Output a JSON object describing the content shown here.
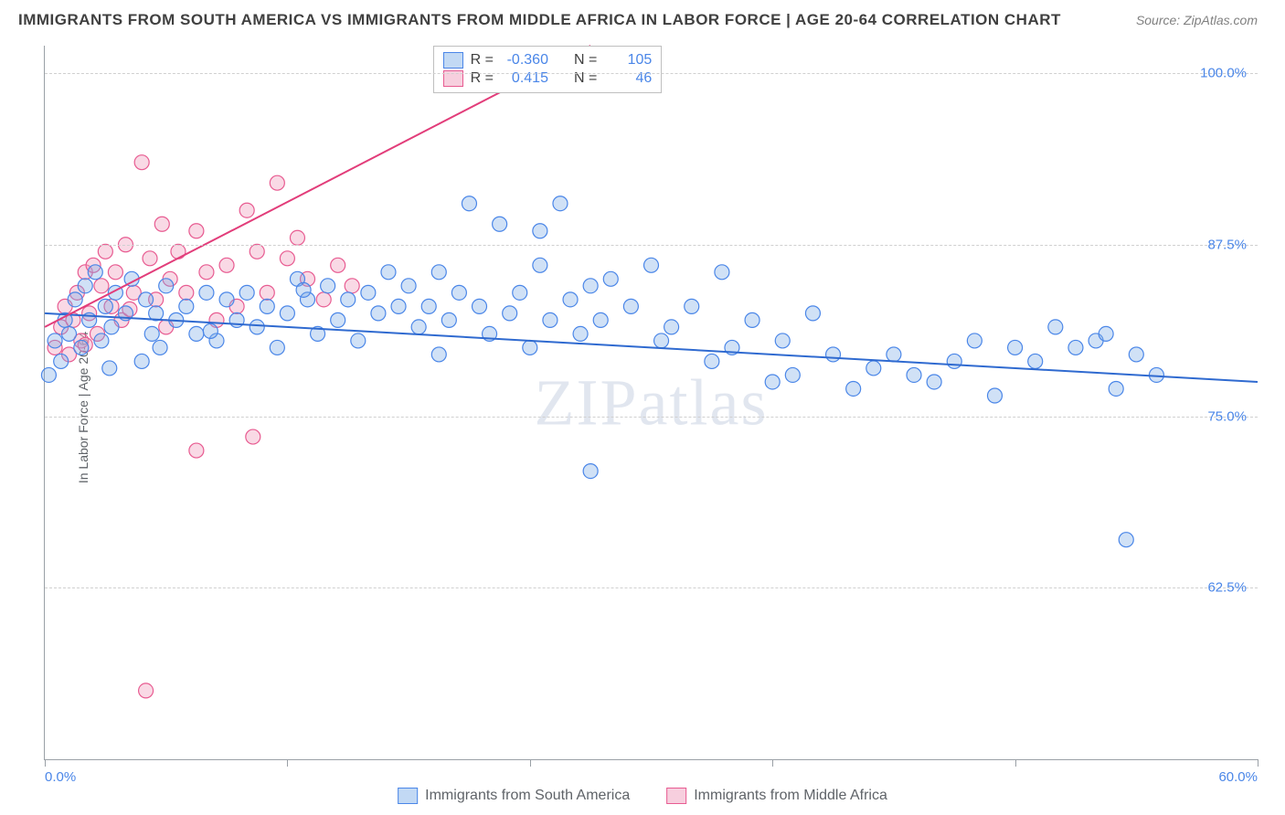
{
  "title": "IMMIGRANTS FROM SOUTH AMERICA VS IMMIGRANTS FROM MIDDLE AFRICA IN LABOR FORCE | AGE 20-64 CORRELATION CHART",
  "source": "Source: ZipAtlas.com",
  "ylabel": "In Labor Force | Age 20-64",
  "watermark": "ZIPatlas",
  "chart": {
    "type": "scatter",
    "xlim": [
      0,
      60
    ],
    "ylim": [
      50,
      102
    ],
    "background_color": "#ffffff",
    "grid_color": "#d0d0d0",
    "grid_dash": true,
    "axis_color": "#9aa0a6",
    "tick_color": "#4a86e8",
    "yticks": [
      62.5,
      75.0,
      87.5,
      100.0
    ],
    "ytick_labels": [
      "62.5%",
      "75.0%",
      "87.5%",
      "100.0%"
    ],
    "xticks": [
      0,
      12,
      24,
      36,
      48,
      60
    ],
    "xtick_labels": [
      "0.0%",
      "",
      "",
      "",
      "",
      "60.0%"
    ],
    "marker_radius": 8,
    "marker_stroke_width": 1.2,
    "line_width": 2
  },
  "series": [
    {
      "name": "Immigrants from South America",
      "fill": "rgba(120,170,230,0.35)",
      "stroke": "#4a86e8",
      "swatch_fill": "rgba(120,170,230,0.45)",
      "swatch_stroke": "#4a86e8",
      "stats": {
        "R": "-0.360",
        "N": "105"
      },
      "trend": {
        "x1": 0,
        "y1": 82.5,
        "x2": 60,
        "y2": 77.5,
        "color": "#2f6ad0"
      },
      "points": [
        [
          0.5,
          80.5
        ],
        [
          0.8,
          79
        ],
        [
          1.0,
          82
        ],
        [
          1.2,
          81
        ],
        [
          1.5,
          83.5
        ],
        [
          1.8,
          80
        ],
        [
          2.0,
          84.5
        ],
        [
          2.2,
          82
        ],
        [
          2.5,
          85.5
        ],
        [
          2.8,
          80.5
        ],
        [
          3.0,
          83
        ],
        [
          3.3,
          81.5
        ],
        [
          3.5,
          84
        ],
        [
          4.0,
          82.5
        ],
        [
          4.3,
          85
        ],
        [
          4.8,
          79
        ],
        [
          5.0,
          83.5
        ],
        [
          5.3,
          81
        ],
        [
          5.7,
          80
        ],
        [
          6.0,
          84.5
        ],
        [
          6.5,
          82
        ],
        [
          7.0,
          83
        ],
        [
          7.5,
          81
        ],
        [
          8.0,
          84
        ],
        [
          8.5,
          80.5
        ],
        [
          9.0,
          83.5
        ],
        [
          9.5,
          82
        ],
        [
          10,
          84
        ],
        [
          10.5,
          81.5
        ],
        [
          11,
          83
        ],
        [
          11.5,
          80
        ],
        [
          12,
          82.5
        ],
        [
          12.5,
          85
        ],
        [
          13,
          83.5
        ],
        [
          13.5,
          81
        ],
        [
          14,
          84.5
        ],
        [
          14.5,
          82
        ],
        [
          15,
          83.5
        ],
        [
          15.5,
          80.5
        ],
        [
          16,
          84
        ],
        [
          16.5,
          82.5
        ],
        [
          17,
          85.5
        ],
        [
          17.5,
          83
        ],
        [
          18,
          84.5
        ],
        [
          18.5,
          81.5
        ],
        [
          19,
          83
        ],
        [
          19.5,
          79.5
        ],
        [
          20,
          82
        ],
        [
          20.5,
          84
        ],
        [
          21,
          90.5
        ],
        [
          21.5,
          83
        ],
        [
          22,
          81
        ],
        [
          22.5,
          89
        ],
        [
          23,
          82.5
        ],
        [
          23.5,
          84
        ],
        [
          24,
          80
        ],
        [
          24.5,
          86
        ],
        [
          25,
          82
        ],
        [
          25.5,
          90.5
        ],
        [
          26,
          83.5
        ],
        [
          26.5,
          81
        ],
        [
          27,
          84.5
        ],
        [
          27.5,
          82
        ],
        [
          28,
          85
        ],
        [
          29,
          83
        ],
        [
          30,
          86
        ],
        [
          30.5,
          80.5
        ],
        [
          31,
          81.5
        ],
        [
          32,
          83
        ],
        [
          33,
          79
        ],
        [
          33.5,
          85.5
        ],
        [
          34,
          80
        ],
        [
          35,
          82
        ],
        [
          36,
          77.5
        ],
        [
          36.5,
          80.5
        ],
        [
          37,
          78
        ],
        [
          38,
          82.5
        ],
        [
          39,
          79.5
        ],
        [
          40,
          77
        ],
        [
          41,
          78.5
        ],
        [
          42,
          79.5
        ],
        [
          43,
          78
        ],
        [
          44,
          77.5
        ],
        [
          45,
          79
        ],
        [
          46,
          80.5
        ],
        [
          47,
          76.5
        ],
        [
          48,
          80
        ],
        [
          49,
          79
        ],
        [
          50,
          81.5
        ],
        [
          51,
          80
        ],
        [
          52,
          80.5
        ],
        [
          53,
          77
        ],
        [
          53.5,
          66
        ],
        [
          54,
          79.5
        ],
        [
          55,
          78
        ],
        [
          27,
          71
        ],
        [
          52.5,
          81
        ],
        [
          19.5,
          85.5
        ],
        [
          24.5,
          88.5
        ],
        [
          3.2,
          78.5
        ],
        [
          5.5,
          82.5
        ],
        [
          8.2,
          81.2
        ],
        [
          12.8,
          84.2
        ],
        [
          0.2,
          78
        ]
      ]
    },
    {
      "name": "Immigrants from Middle Africa",
      "fill": "rgba(240,160,190,0.40)",
      "stroke": "#e85b91",
      "swatch_fill": "rgba(240,160,190,0.5)",
      "swatch_stroke": "#e85b91",
      "stats": {
        "R": "0.415",
        "N": "46"
      },
      "trend": {
        "x1": 0,
        "y1": 81.5,
        "x2": 27,
        "y2": 102,
        "color": "#e23d7a"
      },
      "points": [
        [
          0.5,
          80
        ],
        [
          0.8,
          81.5
        ],
        [
          1.0,
          83
        ],
        [
          1.2,
          79.5
        ],
        [
          1.4,
          82
        ],
        [
          1.6,
          84
        ],
        [
          1.8,
          80.5
        ],
        [
          2.0,
          85.5
        ],
        [
          2.2,
          82.5
        ],
        [
          2.4,
          86
        ],
        [
          2.6,
          81
        ],
        [
          2.8,
          84.5
        ],
        [
          3.0,
          87
        ],
        [
          3.3,
          83
        ],
        [
          3.5,
          85.5
        ],
        [
          3.8,
          82
        ],
        [
          4.0,
          87.5
        ],
        [
          4.4,
          84
        ],
        [
          4.8,
          93.5
        ],
        [
          5.2,
          86.5
        ],
        [
          5.5,
          83.5
        ],
        [
          5.8,
          89
        ],
        [
          6.2,
          85
        ],
        [
          6.6,
          87
        ],
        [
          7.0,
          84
        ],
        [
          7.5,
          88.5
        ],
        [
          8.0,
          85.5
        ],
        [
          8.5,
          82
        ],
        [
          9.0,
          86
        ],
        [
          9.5,
          83
        ],
        [
          10,
          90
        ],
        [
          10.3,
          73.5
        ],
        [
          10.5,
          87
        ],
        [
          11,
          84
        ],
        [
          11.5,
          92
        ],
        [
          12,
          86.5
        ],
        [
          12.5,
          88
        ],
        [
          13,
          85
        ],
        [
          13.8,
          83.5
        ],
        [
          14.5,
          86
        ],
        [
          15.2,
          84.5
        ],
        [
          5.0,
          55
        ],
        [
          7.5,
          72.5
        ],
        [
          4.2,
          82.8
        ],
        [
          2.0,
          80.2
        ],
        [
          6.0,
          81.5
        ]
      ]
    }
  ],
  "stats_labels": {
    "R": "R =",
    "N": "N ="
  },
  "legend": [
    {
      "label": "Immigrants from South America",
      "series": 0
    },
    {
      "label": "Immigrants from Middle Africa",
      "series": 1
    }
  ]
}
